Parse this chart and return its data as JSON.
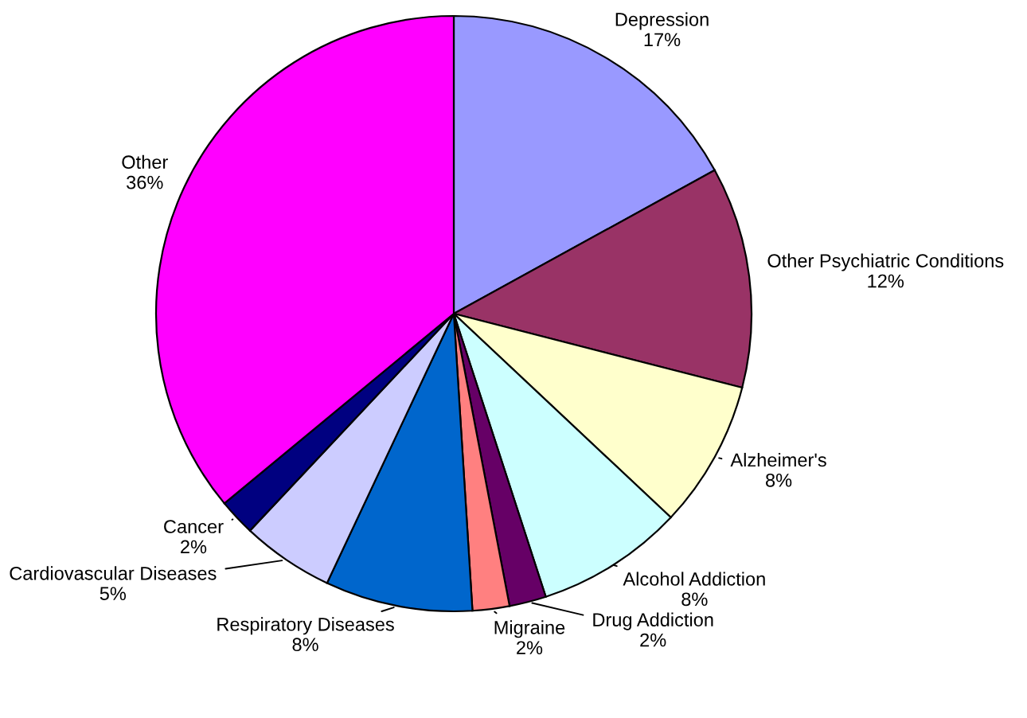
{
  "chart_data": {
    "type": "pie",
    "categories": [
      "Depression",
      "Other Psychiatric Conditions",
      "Alzheimer's",
      "Alcohol Addiction",
      "Drug Addiction",
      "Migraine",
      "Respiratory Diseases",
      "Cardiovascular Diseases",
      "Cancer",
      "Other"
    ],
    "values": [
      17,
      12,
      8,
      8,
      2,
      2,
      8,
      5,
      2,
      36
    ],
    "colors": [
      "#9999ff",
      "#993366",
      "#ffffcc",
      "#ccffff",
      "#660066",
      "#ff8080",
      "#0066cc",
      "#ccccff",
      "#000080",
      "#ff00ff"
    ],
    "value_labels": [
      "17%",
      "12%",
      "8%",
      "8%",
      "2%",
      "2%",
      "8%",
      "5%",
      "2%",
      "36%"
    ],
    "legend": false
  }
}
